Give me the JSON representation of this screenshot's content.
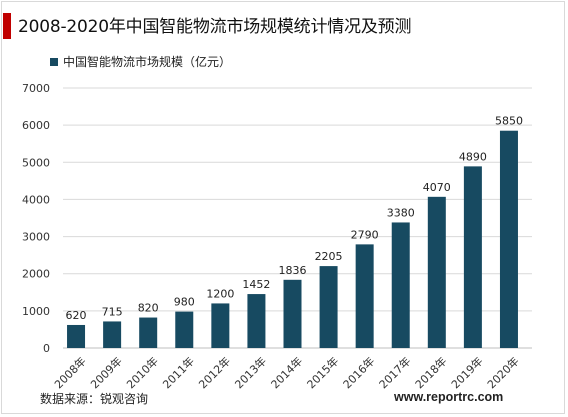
{
  "header": {
    "title": "2008-2020年中国智能物流市场规模统计情况及预测"
  },
  "footer": {
    "source": "数据来源：锐观咨询",
    "watermark": "www.reportrc.com"
  },
  "colors": {
    "bar": "#174a61",
    "accent": "#c00000",
    "grid": "#d9d9d9"
  },
  "chart_data": {
    "type": "bar",
    "title": "",
    "xlabel": "",
    "ylabel": "",
    "categories": [
      "2008年",
      "2009年",
      "2010年",
      "2011年",
      "2012年",
      "2013年",
      "2014年",
      "2015年",
      "2016年",
      "2017年",
      "2018年",
      "2019年",
      "2020年"
    ],
    "series": [
      {
        "name": "中国智能物流市场规模（亿元）",
        "values": [
          620,
          715,
          820,
          980,
          1200,
          1452,
          1836,
          2205,
          2790,
          3380,
          4070,
          4890,
          5850
        ]
      }
    ],
    "data_labels": [
      "620",
      "715",
      "820",
      "980",
      "1200",
      "1452",
      "1836",
      "2205",
      "2790",
      "3380",
      "4070",
      "4890",
      "5850"
    ],
    "ylim": [
      0,
      7000
    ],
    "yticks": [
      "0",
      "1000",
      "2000",
      "3000",
      "4000",
      "5000",
      "6000",
      "7000"
    ],
    "grid": true,
    "legend_position": "top-left"
  }
}
